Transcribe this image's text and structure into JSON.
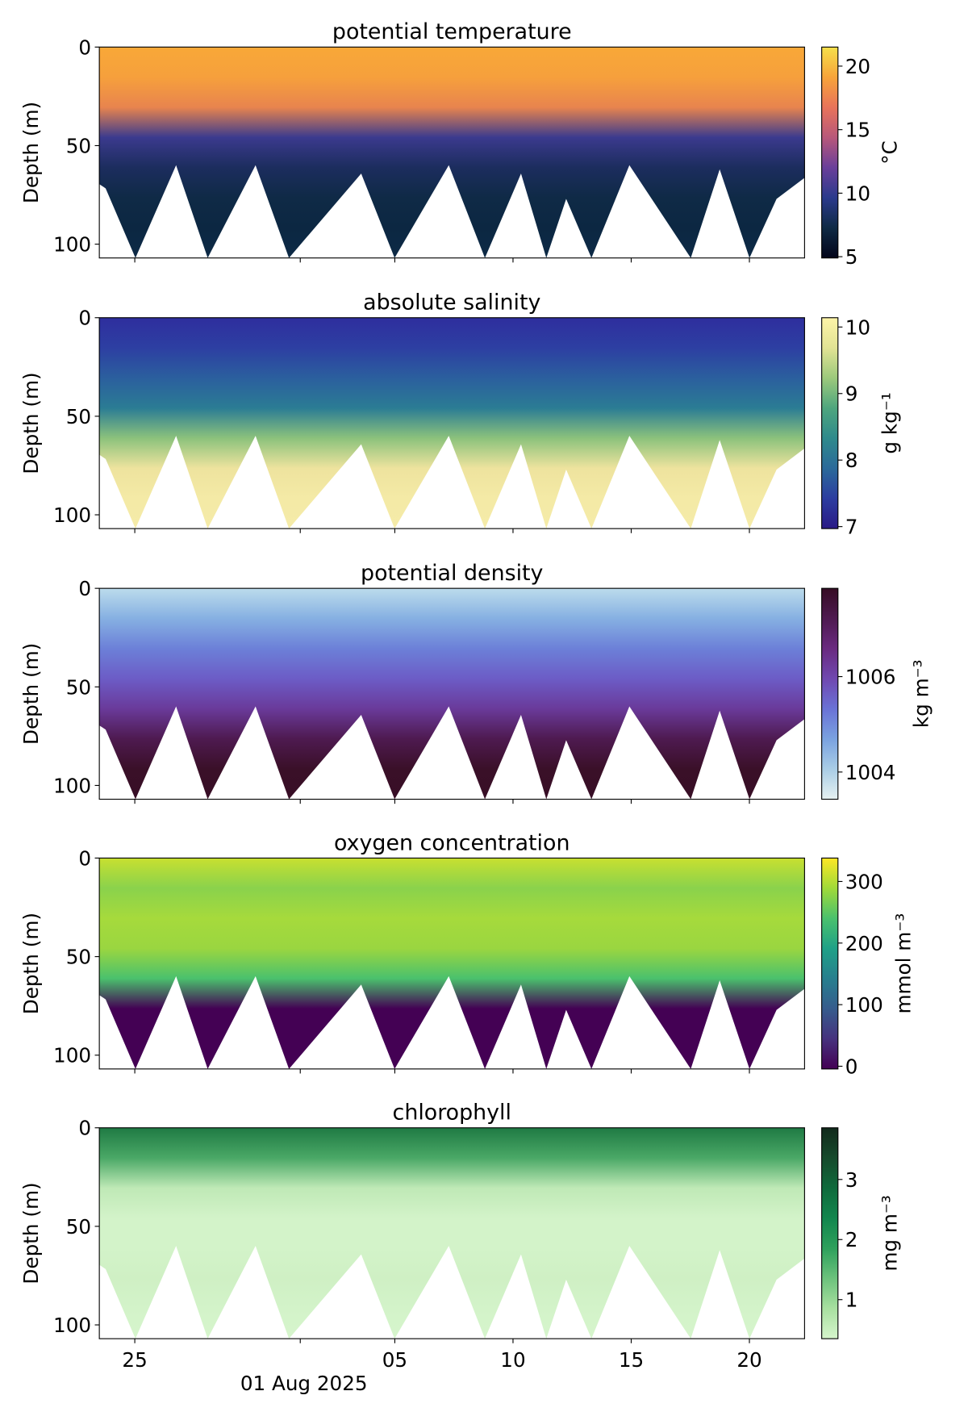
{
  "chart_data": [
    {
      "type": "heatmap",
      "title": "potential temperature",
      "ylabel": "Depth (m)",
      "ylim": [
        107,
        0
      ],
      "yticks": [
        0,
        50,
        100
      ],
      "colorbar_label": "°C",
      "clim": [
        4.9,
        21.5
      ],
      "cticks": [
        5,
        10,
        15,
        20
      ],
      "colormap": [
        "#03051a",
        "#0f2a45",
        "#2b3a8c",
        "#6a3f9a",
        "#b8587a",
        "#e8735a",
        "#f7a43a",
        "#f5e04a"
      ],
      "field_colors": [
        "#f8a838",
        "#f6a03c",
        "#e8844e",
        "#3b3a8e",
        "#1c2d5e",
        "#0f2a46",
        "#0c2742",
        "#0d2a46"
      ]
    },
    {
      "type": "heatmap",
      "title": "absolute salinity",
      "ylabel": "Depth (m)",
      "ylim": [
        107,
        0
      ],
      "yticks": [
        0,
        50,
        100
      ],
      "colorbar_label": "g kg⁻¹",
      "clim": [
        6.97,
        10.14
      ],
      "cticks": [
        7,
        8,
        9,
        10
      ],
      "colormap": [
        "#2a1a86",
        "#2c3da0",
        "#2b6a9a",
        "#2f8a8c",
        "#4fa67e",
        "#9cc97c",
        "#e2e394",
        "#fdf4a8"
      ],
      "field_colors": [
        "#2e2e9e",
        "#2d3fa2",
        "#2b5f9e",
        "#2b7c94",
        "#8cc27c",
        "#eee39e",
        "#f4eaa6",
        "#f5eba8"
      ]
    },
    {
      "type": "heatmap",
      "title": "potential density",
      "ylabel": "Depth (m)",
      "ylim": [
        107,
        0
      ],
      "yticks": [
        0,
        50,
        100
      ],
      "colorbar_label": "kg m⁻³",
      "clim": [
        1003.43,
        1007.85
      ],
      "cticks": [
        1004,
        1006
      ],
      "colormap": [
        "#e6f1f1",
        "#a9cde6",
        "#7aa2e0",
        "#6a72d6",
        "#7048b0",
        "#6a2a80",
        "#4e1a50",
        "#360d24"
      ],
      "field_colors": [
        "#bcdcec",
        "#86b0e2",
        "#6c80d8",
        "#6c5cc6",
        "#6a3a9a",
        "#4e1a50",
        "#3a1028",
        "#380e26"
      ]
    },
    {
      "type": "heatmap",
      "title": "oxygen concentration",
      "ylabel": "Depth (m)",
      "ylim": [
        107,
        0
      ],
      "yticks": [
        0,
        50,
        100
      ],
      "colorbar_label": "mmol m⁻³",
      "clim": [
        -4.4,
        338
      ],
      "cticks": [
        0,
        100,
        200,
        300
      ],
      "colormap": [
        "#440154",
        "#46327e",
        "#365c8d",
        "#277f8e",
        "#1fa187",
        "#4ac16d",
        "#a0da39",
        "#fde725"
      ],
      "field_colors": [
        "#c8e030",
        "#8ad24c",
        "#a6da3c",
        "#9ad640",
        "#4ac16d",
        "#440154",
        "#440154",
        "#440154"
      ]
    },
    {
      "type": "heatmap",
      "title": "chlorophyll",
      "ylabel": "Depth (m)",
      "ylim": [
        107,
        0
      ],
      "yticks": [
        0,
        50,
        100
      ],
      "colorbar_label": "mg m⁻³",
      "clim": [
        0.35,
        3.86
      ],
      "cticks": [
        1,
        2,
        3
      ],
      "colormap": [
        "#d6f5cc",
        "#a8e0a0",
        "#6cc27c",
        "#2ea05c",
        "#12864e",
        "#0f6a3c",
        "#164a2c",
        "#122a1c"
      ],
      "field_colors": [
        "#1f7a44",
        "#4aa866",
        "#bfe9b6",
        "#d3f3c9",
        "#d3f3c9",
        "#cff0c4",
        "#d3f3c9",
        "#d6f5cc"
      ],
      "xlim": [
        "2025-07-23T12:00",
        "2025-08-22T08:00"
      ],
      "xticks": [
        {
          "value": "2025-07-25",
          "label": "25"
        },
        {
          "value": "2025-08-01",
          "label": "01 Aug 2025"
        },
        {
          "value": "2025-08-05",
          "label": "05"
        },
        {
          "value": "2025-08-10",
          "label": "10"
        },
        {
          "value": "2025-08-15",
          "label": "15"
        },
        {
          "value": "2025-08-20",
          "label": "20"
        }
      ]
    }
  ]
}
